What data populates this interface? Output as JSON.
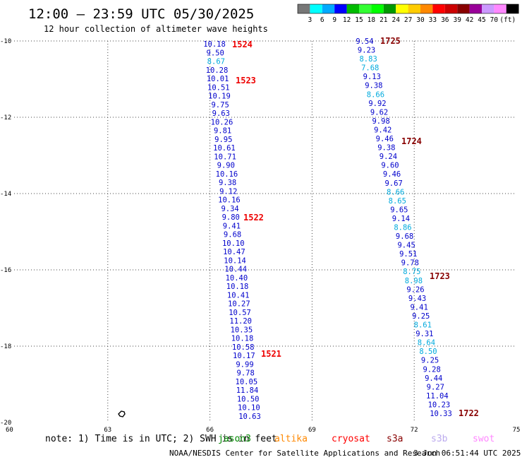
{
  "header": {
    "title": "12:00 – 23:59 UTC 05/30/2025",
    "subtitle": "12 hour collection of altimeter wave heights"
  },
  "legend": {
    "colors": [
      "#777777",
      "#00ffff",
      "#00aaff",
      "#0000ff",
      "#00bb00",
      "#33ff33",
      "#00ff00",
      "#009900",
      "#ffff00",
      "#ffcc00",
      "#ff8800",
      "#ff0000",
      "#cc0000",
      "#880000",
      "#990099",
      "#cc99ff",
      "#ff88ff",
      "#000000"
    ],
    "labels": [
      "3",
      "6",
      "9",
      "12",
      "15",
      "18",
      "21",
      "24",
      "27",
      "30",
      "33",
      "36",
      "39",
      "42",
      "45",
      "70"
    ],
    "unit": "(ft)"
  },
  "map": {
    "lon_ticks": [
      "60",
      "63",
      "66",
      "69",
      "72",
      "75"
    ],
    "lat_ticks": [
      "-10",
      "-12",
      "-14",
      "-16",
      "-18",
      "-20"
    ]
  },
  "track_a": {
    "values": [
      "10.18",
      "9.50",
      "8.67",
      "10.28",
      "10.01",
      "10.51",
      "10.19",
      "9.75",
      "9.63",
      "10.26",
      "9.81",
      "9.95",
      "10.61",
      "10.71",
      "9.90",
      "10.16",
      "9.38",
      "9.12",
      "10.16",
      "9.34",
      "9.80",
      "9.41",
      "9.68",
      "10.10",
      "10.47",
      "10.14",
      "10.44",
      "10.40",
      "10.18",
      "10.41",
      "10.27",
      "10.57",
      "11.20",
      "10.35",
      "10.18",
      "10.58",
      "10.17",
      "9.99",
      "9.78",
      "10.05",
      "11.84",
      "10.50",
      "10.10",
      "10.63"
    ],
    "colors": [
      "#0000cc",
      "#0000cc",
      "#00aadd",
      "#0000cc",
      "#0000cc",
      "#0000cc",
      "#0000cc",
      "#0000cc",
      "#0000cc",
      "#0000cc",
      "#0000cc",
      "#0000cc",
      "#0000cc",
      "#0000cc",
      "#0000cc",
      "#0000cc",
      "#0000cc",
      "#0000cc",
      "#0000cc",
      "#0000cc",
      "#0000cc",
      "#0000cc",
      "#0000cc",
      "#0000cc",
      "#0000cc",
      "#0000cc",
      "#0000cc",
      "#0000cc",
      "#0000cc",
      "#0000cc",
      "#0000cc",
      "#0000cc",
      "#0000cc",
      "#0000cc",
      "#0000cc",
      "#0000cc",
      "#0000cc",
      "#0000cc",
      "#0000cc",
      "#0000cc",
      "#0000cc",
      "#0000cc",
      "#0000cc",
      "#0000cc"
    ],
    "times": [
      "1524",
      "1523",
      "1522",
      "1521"
    ]
  },
  "track_b": {
    "values": [
      "9.54",
      "9.23",
      "8.83",
      "7.68",
      "9.13",
      "9.38",
      "8.66",
      "9.92",
      "9.62",
      "9.98",
      "9.42",
      "9.46",
      "9.38",
      "9.24",
      "9.60",
      "9.46",
      "9.67",
      "8.66",
      "8.65",
      "9.65",
      "9.14",
      "8.86",
      "9.68",
      "9.45",
      "9.51",
      "9.78",
      "8.75",
      "8.98",
      "9.26",
      "9.43",
      "9.41",
      "9.25",
      "8.61",
      "9.31",
      "8.64",
      "8.50",
      "9.25",
      "9.28",
      "9.44",
      "9.27",
      "11.04",
      "10.23",
      "10.33"
    ],
    "colors": [
      "#0000cc",
      "#0000cc",
      "#00aadd",
      "#00aadd",
      "#0000cc",
      "#0000cc",
      "#00aadd",
      "#0000cc",
      "#0000cc",
      "#0000cc",
      "#0000cc",
      "#0000cc",
      "#0000cc",
      "#0000cc",
      "#0000cc",
      "#0000cc",
      "#0000cc",
      "#00aadd",
      "#00aadd",
      "#0000cc",
      "#0000cc",
      "#00aadd",
      "#0000cc",
      "#0000cc",
      "#0000cc",
      "#0000cc",
      "#00aadd",
      "#00aadd",
      "#0000cc",
      "#0000cc",
      "#0000cc",
      "#0000cc",
      "#00aadd",
      "#0000cc",
      "#00aadd",
      "#00aadd",
      "#0000cc",
      "#0000cc",
      "#0000cc",
      "#0000cc",
      "#0000cc",
      "#0000cc",
      "#0000cc"
    ],
    "times": [
      "1725",
      "1724",
      "1723",
      "1722"
    ]
  },
  "footer": {
    "note": "note: 1) Time is in UTC; 2) SWH is in feet",
    "satellites": [
      {
        "name": "jason3",
        "color": "#008800"
      },
      {
        "name": "altika",
        "color": "#ff8800"
      },
      {
        "name": "cryosat",
        "color": "#ff0000"
      },
      {
        "name": "s3a",
        "color": "#880000"
      },
      {
        "name": "s3b",
        "color": "#bbaaee"
      },
      {
        "name": "swot",
        "color": "#ff88ff"
      }
    ],
    "credit": "NOAA/NESDIS Center for Satellite Applications and Research",
    "timestamp": "3 Jun 06:51:44 UTC 2025"
  },
  "colors": {
    "time_red": "#ee0000",
    "time_darkred": "#880000",
    "grid": "#444444",
    "land": "#000000"
  }
}
